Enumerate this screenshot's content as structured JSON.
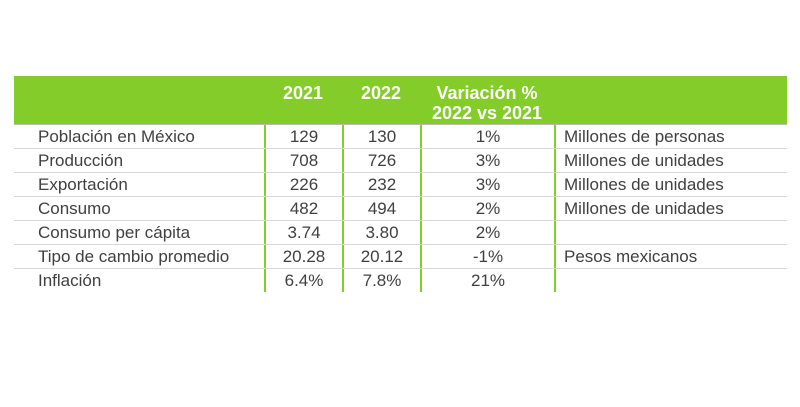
{
  "colors": {
    "header_bg": "#84cc2a",
    "header_text": "#ffffff",
    "body_text": "#404040",
    "divider": "#84cc2a"
  },
  "header": {
    "col_2021": "2021",
    "col_2022": "2022",
    "col_var_line1": "Variación %",
    "col_var_line2": "2022 vs 2021"
  },
  "rows": [
    {
      "label": "Población en México",
      "v2021": "129",
      "v2022": "130",
      "var": "1%",
      "unit": "Millones de personas"
    },
    {
      "label": "Producción",
      "v2021": "708",
      "v2022": "726",
      "var": "3%",
      "unit": "Millones de unidades"
    },
    {
      "label": "Exportación",
      "v2021": "226",
      "v2022": "232",
      "var": "3%",
      "unit": "Millones de unidades"
    },
    {
      "label": "Consumo",
      "v2021": "482",
      "v2022": "494",
      "var": "2%",
      "unit": "Millones de unidades"
    },
    {
      "label": "Consumo per cápita",
      "v2021": "3.74",
      "v2022": "3.80",
      "var": "2%",
      "unit": ""
    },
    {
      "label": "Tipo de cambio promedio",
      "v2021": "20.28",
      "v2022": "20.12",
      "var": "-1%",
      "unit": "Pesos mexicanos"
    },
    {
      "label": "Inflación",
      "v2021": "6.4%",
      "v2022": "7.8%",
      "var": "21%",
      "unit": ""
    }
  ]
}
